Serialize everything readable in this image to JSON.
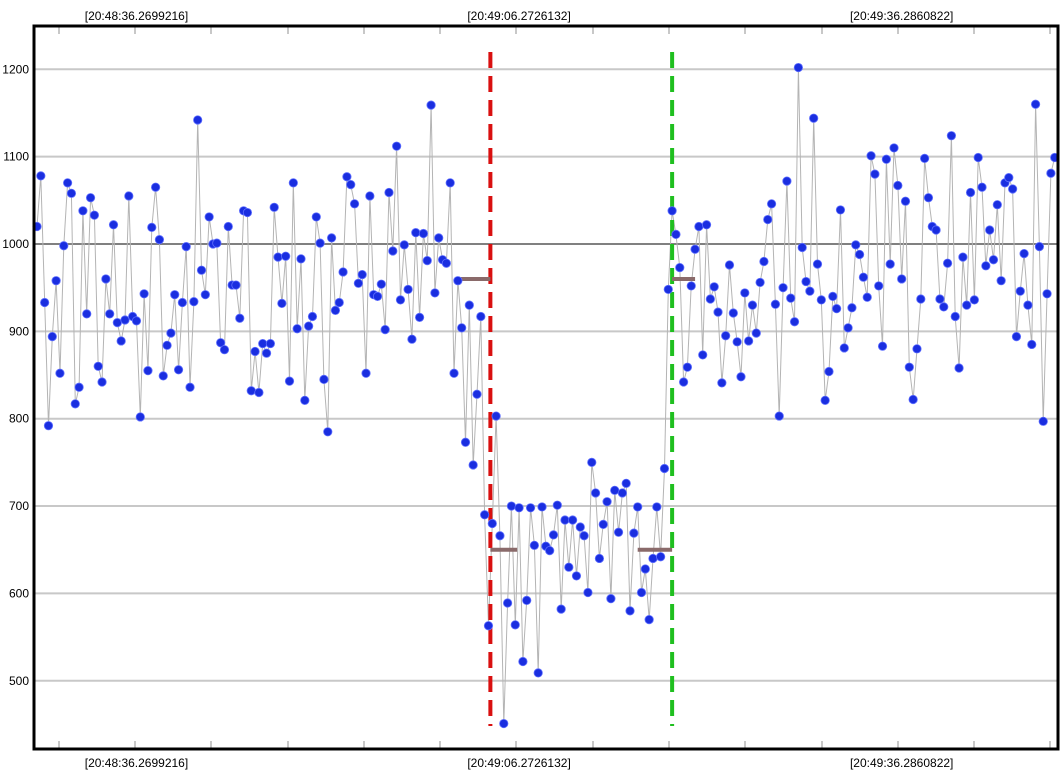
{
  "chart_data": {
    "type": "scatter",
    "title": "",
    "xlabel": "",
    "ylabel": "",
    "ylim": [
      440,
      1250
    ],
    "xlim": [
      0,
      268
    ],
    "grid": true,
    "yticks": [
      500,
      600,
      700,
      800,
      900,
      1000,
      1100,
      1200
    ],
    "reference_line": 1000,
    "time_ticks": [
      {
        "x": 26,
        "label": "[20:48:36.2699216]"
      },
      {
        "x": 126,
        "label": "[20:49:06.2726132]"
      },
      {
        "x": 226,
        "label": "[20:49:36.2860822]"
      }
    ],
    "markers": [
      {
        "name": "start",
        "color": "#d91010",
        "x": 118.5
      },
      {
        "name": "end",
        "color": "#1fbf1f",
        "x": 166
      }
    ],
    "level_segments": [
      {
        "x0": 110.5,
        "x1": 118.5,
        "y": 960
      },
      {
        "x0": 118.5,
        "x1": 125.5,
        "y": 650
      },
      {
        "x0": 157,
        "x1": 166,
        "y": 650
      },
      {
        "x0": 166,
        "x1": 172,
        "y": 960
      }
    ],
    "series": [
      {
        "line_color": "#b4b4b4",
        "point_color": "#1a2ee0",
        "values": [
          1020,
          1078,
          933,
          792,
          894,
          958,
          852,
          998,
          1070,
          1058,
          817,
          836,
          1038,
          920,
          1053,
          1033,
          860,
          842,
          960,
          920,
          1022,
          910,
          889,
          913,
          1055,
          917,
          912,
          802,
          943,
          855,
          1019,
          1065,
          1005,
          849,
          884,
          898,
          942,
          856,
          933,
          997,
          836,
          934,
          1142,
          970,
          942,
          1031,
          1000,
          1001,
          887,
          879,
          1020,
          953,
          953,
          915,
          1038,
          1036,
          832,
          877,
          830,
          886,
          875,
          886,
          1042,
          985,
          932,
          986,
          843,
          1070,
          903,
          983,
          821,
          906,
          917,
          1031,
          1001,
          845,
          785,
          1007,
          924,
          933,
          968,
          1077,
          1068,
          1046,
          955,
          965,
          852,
          1055,
          942,
          940,
          954,
          902,
          1059,
          992,
          1112,
          936,
          999,
          948,
          891,
          1013,
          916,
          1012,
          981,
          1159,
          944,
          1007,
          982,
          978,
          1070,
          852,
          958,
          904,
          773,
          930,
          747,
          828,
          917,
          690,
          563,
          680,
          803,
          666,
          451,
          589,
          700,
          564,
          698,
          522,
          592,
          698,
          655,
          509,
          699,
          654,
          649,
          667,
          701,
          582,
          684,
          630,
          684,
          620,
          676,
          666,
          601,
          750,
          715,
          640,
          679,
          705,
          594,
          718,
          670,
          715,
          726,
          580,
          669,
          699,
          601,
          628,
          570,
          640,
          699,
          642,
          743,
          948,
          1038,
          1011,
          973,
          842,
          859,
          952,
          994,
          1020,
          873,
          1022,
          937,
          951,
          922,
          841,
          895,
          976,
          921,
          888,
          848,
          944,
          889,
          930,
          898,
          956,
          980,
          1028,
          1046,
          931,
          803,
          950,
          1072,
          938,
          911,
          1202,
          996,
          957,
          946,
          1144,
          977,
          936,
          821,
          854,
          940,
          926,
          1039,
          881,
          904,
          927,
          999,
          988,
          962,
          939,
          1101,
          1080,
          952,
          883,
          1097,
          977,
          1110,
          1067,
          960,
          1049,
          859,
          822,
          880,
          937,
          1098,
          1053,
          1020,
          1016,
          937,
          928,
          978,
          1124,
          917,
          858,
          985,
          930,
          1059,
          936,
          1099,
          1065,
          975,
          1016,
          982,
          1045,
          958,
          1070,
          1076,
          1063,
          894,
          946,
          989,
          930,
          885,
          1160,
          997,
          797,
          943,
          1081,
          1099
        ]
      }
    ]
  }
}
